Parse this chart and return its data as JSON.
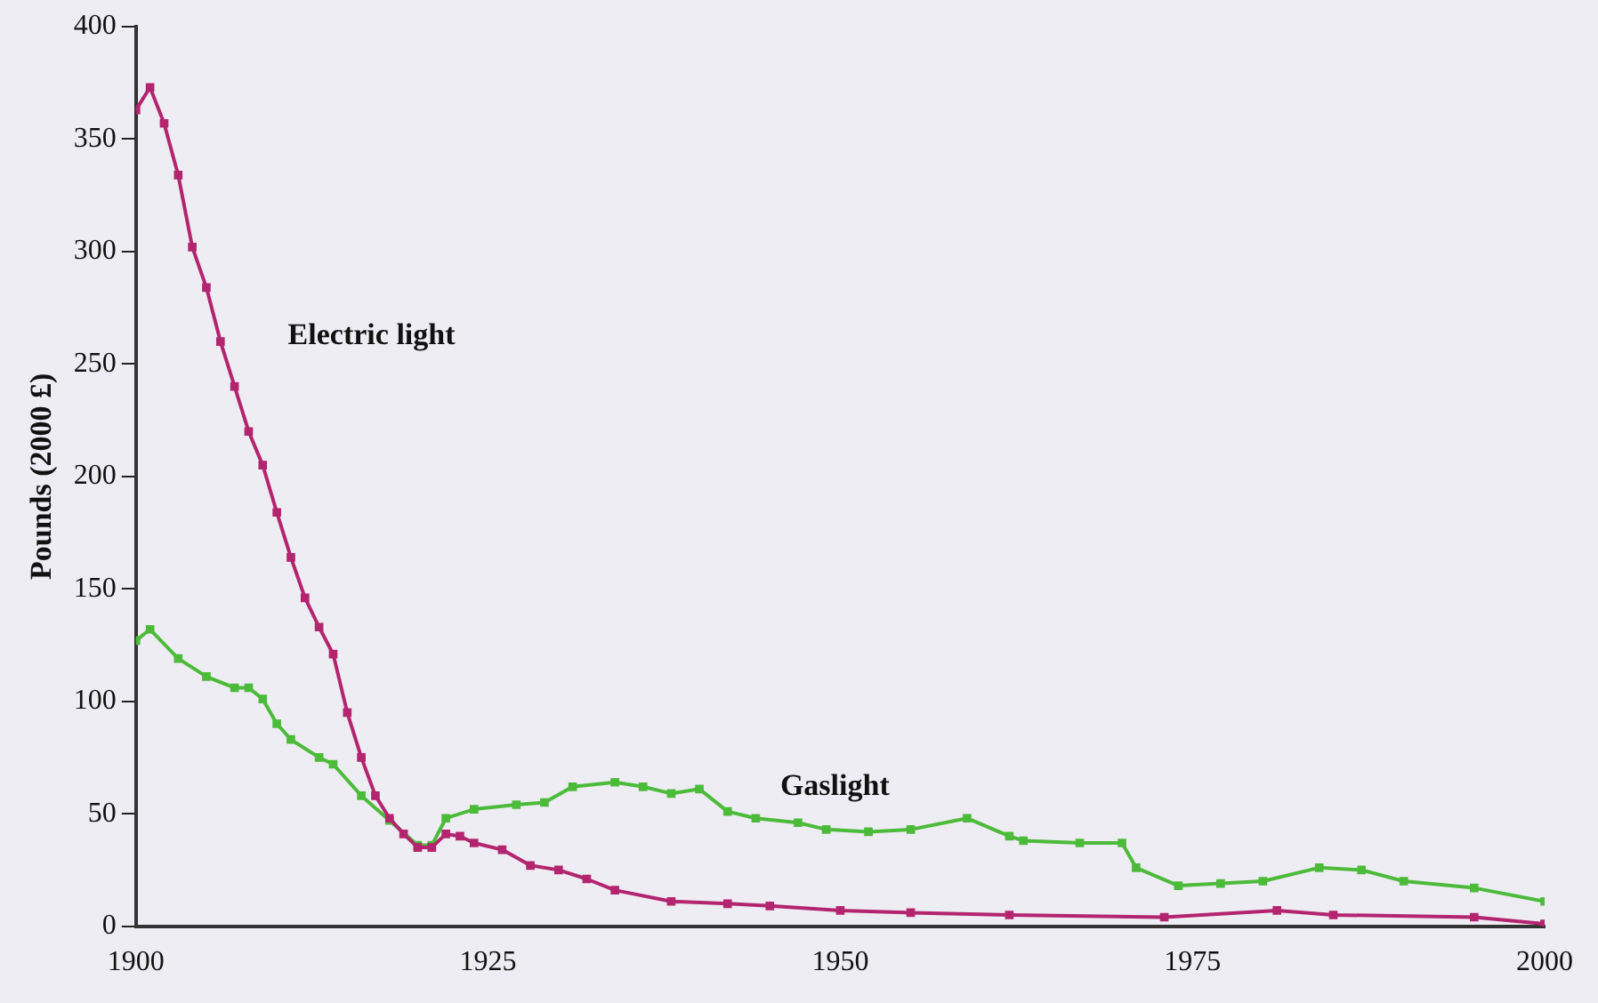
{
  "chart_data": {
    "type": "line",
    "ylabel": "Pounds (2000 £)",
    "xlim": [
      1900,
      2000
    ],
    "xticks": [
      1900,
      1925,
      1950,
      1975,
      2000
    ],
    "ylim": [
      0,
      400
    ],
    "yticks": [
      0,
      50,
      100,
      150,
      200,
      250,
      300,
      350,
      400
    ],
    "grid": false,
    "legend": false,
    "marker": "square",
    "line_style": "solid",
    "series": [
      {
        "name": "Electric light",
        "color": "#b3256f",
        "x": [
          1900,
          1901,
          1902,
          1903,
          1904,
          1905,
          1906,
          1907,
          1908,
          1909,
          1910,
          1911,
          1912,
          1913,
          1914,
          1915,
          1916,
          1917,
          1918,
          1919,
          1920,
          1921,
          1922,
          1923,
          1924,
          1926,
          1928,
          1930,
          1932,
          1934,
          1938,
          1942,
          1945,
          1950,
          1955,
          1962,
          1973,
          1981,
          1985,
          1995,
          2000
        ],
        "values": [
          363,
          373,
          357,
          334,
          302,
          284,
          260,
          240,
          220,
          205,
          184,
          164,
          146,
          133,
          121,
          95,
          75,
          58,
          48,
          41,
          35,
          35,
          41,
          40,
          37,
          34,
          27,
          25,
          21,
          16,
          11,
          10,
          9,
          7,
          6,
          5,
          4,
          7,
          5,
          4,
          1
        ]
      },
      {
        "name": "Gaslight",
        "color": "#4cbb3a",
        "x": [
          1900,
          1901,
          1903,
          1905,
          1907,
          1908,
          1909,
          1910,
          1911,
          1913,
          1914,
          1916,
          1918,
          1920,
          1921,
          1922,
          1924,
          1927,
          1929,
          1931,
          1934,
          1936,
          1938,
          1940,
          1942,
          1944,
          1947,
          1949,
          1952,
          1955,
          1959,
          1962,
          1963,
          1967,
          1970,
          1971,
          1974,
          1977,
          1980,
          1984,
          1987,
          1990,
          1995,
          2000
        ],
        "values": [
          127,
          132,
          119,
          111,
          106,
          106,
          101,
          90,
          83,
          75,
          72,
          58,
          47,
          36,
          36,
          48,
          52,
          54,
          55,
          62,
          64,
          62,
          59,
          61,
          51,
          48,
          46,
          43,
          42,
          43,
          48,
          40,
          38,
          37,
          37,
          26,
          18,
          19,
          20,
          26,
          25,
          20,
          17,
          11
        ]
      }
    ]
  }
}
